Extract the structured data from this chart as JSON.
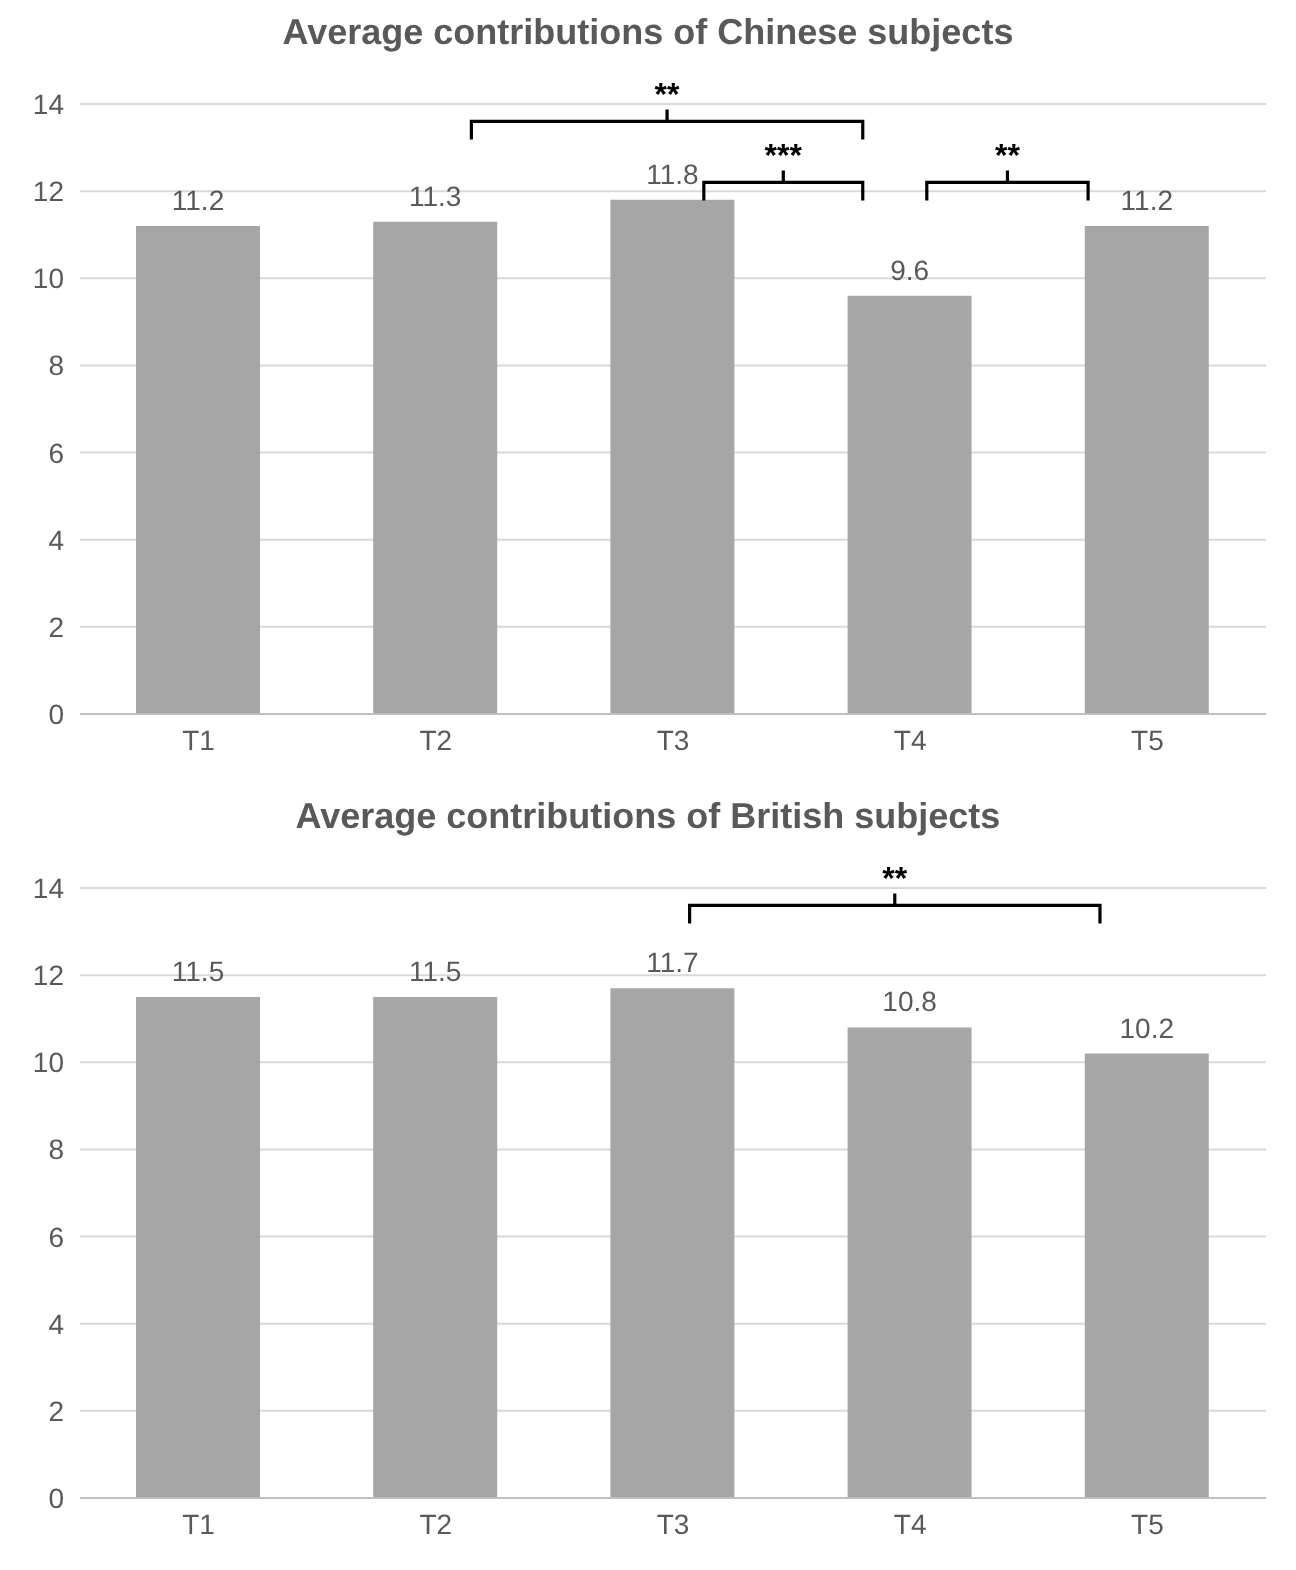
{
  "chart_data": [
    {
      "type": "bar",
      "title": "Average contributions of Chinese subjects",
      "categories": [
        "T1",
        "T2",
        "T3",
        "T4",
        "T5"
      ],
      "values": [
        11.2,
        11.3,
        11.8,
        9.6,
        11.2
      ],
      "color": "#a6a6a6",
      "ylim": [
        0,
        14
      ],
      "yticks": [
        0,
        2,
        4,
        6,
        8,
        10,
        12,
        14
      ],
      "grid": "y",
      "data_labels": true,
      "annotations": [
        "**",
        "***",
        "**"
      ]
    },
    {
      "type": "bar",
      "title": "Average contributions of British subjects",
      "categories": [
        "T1",
        "T2",
        "T3",
        "T4",
        "T5"
      ],
      "values": [
        11.5,
        11.5,
        11.7,
        10.8,
        10.2
      ],
      "color": "#a6a6a6",
      "ylim": [
        0,
        14
      ],
      "yticks": [
        0,
        2,
        4,
        6,
        8,
        10,
        12,
        14
      ],
      "grid": "y",
      "data_labels": true,
      "annotations": [
        "**"
      ]
    }
  ]
}
